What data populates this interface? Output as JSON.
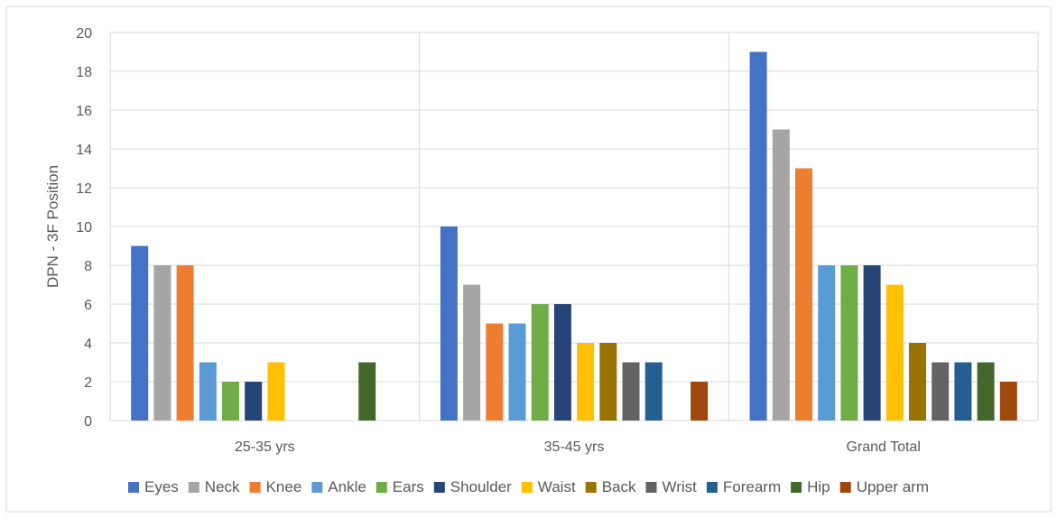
{
  "chart_data": {
    "type": "bar",
    "ylabel": "DPN - 3F Position",
    "xlabel": "",
    "ylim": [
      0,
      20
    ],
    "yticks": [
      0,
      2,
      4,
      6,
      8,
      10,
      12,
      14,
      16,
      18,
      20
    ],
    "grid": true,
    "legend": "bottom",
    "categories": [
      "25-35 yrs",
      "35-45 yrs",
      "Grand Total"
    ],
    "series": [
      {
        "name": "Eyes",
        "color": "#4472C4",
        "values": [
          9,
          10,
          19
        ]
      },
      {
        "name": "Neck",
        "color": "#A5A5A5",
        "values": [
          8,
          7,
          15
        ]
      },
      {
        "name": "Knee",
        "color": "#ED7D31",
        "values": [
          8,
          5,
          13
        ]
      },
      {
        "name": "Ankle",
        "color": "#5B9BD5",
        "values": [
          3,
          5,
          8
        ]
      },
      {
        "name": "Ears",
        "color": "#70AD47",
        "values": [
          2,
          6,
          8
        ]
      },
      {
        "name": "Shoulder",
        "color": "#264478",
        "values": [
          2,
          6,
          8
        ]
      },
      {
        "name": "Waist",
        "color": "#FFC000",
        "values": [
          3,
          4,
          7
        ]
      },
      {
        "name": "Back",
        "color": "#997300",
        "values": [
          null,
          4,
          4
        ]
      },
      {
        "name": "Wrist",
        "color": "#636363",
        "values": [
          null,
          3,
          3
        ]
      },
      {
        "name": "Forearm",
        "color": "#255E91",
        "values": [
          null,
          3,
          3
        ]
      },
      {
        "name": "Hip",
        "color": "#43682B",
        "values": [
          3,
          null,
          3
        ]
      },
      {
        "name": "Upper arm",
        "color": "#9E480E",
        "values": [
          null,
          2,
          2
        ]
      }
    ]
  }
}
